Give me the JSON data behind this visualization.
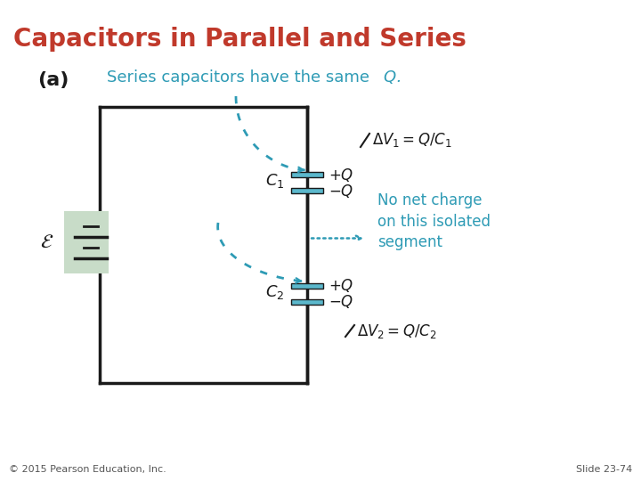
{
  "title": "Capacitors in Parallel and Series",
  "title_color": "#C0392B",
  "background_color": "#FFFFFF",
  "cyan_color": "#2E9BB5",
  "black_color": "#1A1A1A",
  "label_a": "(a)",
  "series_text": "Series capacitors have the same ",
  "series_Q": "Q.",
  "dv1_text": "ΔV₁ = Q/C₁",
  "dv2_text": "ΔV₂ = Q/C₂",
  "no_net_line1": "No net charge",
  "no_net_line2": "on this isolated",
  "no_net_line3": "segment",
  "footer_left": "© 2015 Pearson Education, Inc.",
  "footer_right": "Slide 23-74",
  "cap_plate_color": "#5BB8CC",
  "battery_bg": "#C8DCC8",
  "circuit_color": "#1A1A1A"
}
